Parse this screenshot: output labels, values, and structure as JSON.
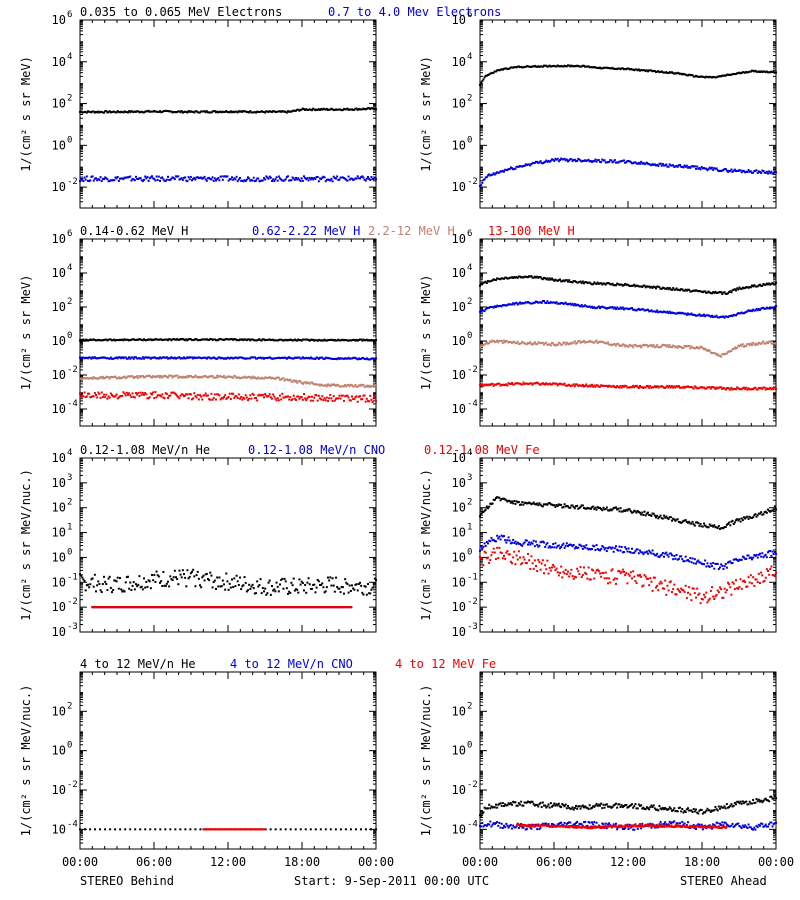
{
  "footer": {
    "left": "STEREO Behind",
    "center": "Start:  9-Sep-2011 00:00 UTC",
    "right": "STEREO Ahead"
  },
  "colors": {
    "black": "#000000",
    "blue": "#0000dd",
    "brown": "#c08070",
    "red": "#ee0000"
  },
  "chart_data": [
    {
      "type": "scatter",
      "panel": "electrons-behind",
      "yscale": "log",
      "title_entries": [
        {
          "text": "0.035 to 0.065 MeV Electrons",
          "color": "#000000"
        },
        {
          "text": "0.7 to 4.0 Mev Electrons",
          "color": "#0000dd"
        }
      ],
      "ylabel": "1/(cm² s sr MeV)",
      "ylim_exp": [
        -3,
        6
      ],
      "ytick_exps": [
        -2,
        0,
        2,
        4,
        6
      ],
      "x_hours": [
        0,
        24
      ],
      "xticks": [
        "00:00",
        "06:00",
        "12:00",
        "18:00",
        "00:00"
      ],
      "series": [
        {
          "color": "#000000",
          "x": [
            0,
            3,
            6,
            9,
            12,
            15,
            17,
            18,
            21,
            24
          ],
          "y_exp": [
            1.6,
            1.6,
            1.62,
            1.6,
            1.62,
            1.6,
            1.6,
            1.72,
            1.72,
            1.75
          ],
          "jitter": 0.04
        },
        {
          "color": "#0000dd",
          "x": [
            0,
            4,
            8,
            12,
            16,
            20,
            24
          ],
          "y_exp": [
            -1.6,
            -1.6,
            -1.6,
            -1.6,
            -1.6,
            -1.6,
            -1.6
          ],
          "jitter": 0.12
        }
      ]
    },
    {
      "type": "scatter",
      "panel": "electrons-ahead",
      "yscale": "log",
      "title_entries": [],
      "ylabel": "1/(cm² s sr MeV)",
      "ylim_exp": [
        -3,
        6
      ],
      "ytick_exps": [
        -2,
        0,
        2,
        4,
        6
      ],
      "x_hours": [
        0,
        24
      ],
      "xticks": [
        "00:00",
        "06:00",
        "12:00",
        "18:00",
        "00:00"
      ],
      "series": [
        {
          "color": "#000000",
          "x": [
            0,
            0.4,
            1.5,
            3,
            6,
            8,
            10,
            12,
            14,
            16,
            17.5,
            19,
            20,
            22,
            24
          ],
          "y_exp": [
            2.9,
            3.3,
            3.6,
            3.75,
            3.8,
            3.8,
            3.7,
            3.65,
            3.55,
            3.45,
            3.3,
            3.25,
            3.35,
            3.55,
            3.5
          ],
          "jitter": 0.03
        },
        {
          "color": "#0000dd",
          "x": [
            0,
            0.5,
            2,
            4,
            6,
            8,
            10,
            12,
            14,
            16,
            18,
            20,
            22,
            24
          ],
          "y_exp": [
            -2.0,
            -1.5,
            -1.2,
            -0.9,
            -0.7,
            -0.7,
            -0.75,
            -0.8,
            -0.9,
            -1.0,
            -1.1,
            -1.2,
            -1.25,
            -1.3
          ],
          "jitter": 0.07
        }
      ]
    },
    {
      "type": "scatter",
      "panel": "protons-behind",
      "yscale": "log",
      "title_entries": [
        {
          "text": "0.14-0.62 MeV H",
          "color": "#000000"
        },
        {
          "text": "0.62-2.22 MeV H",
          "color": "#0000dd"
        },
        {
          "text": "2.2-12 MeV H",
          "color": "#c08070"
        },
        {
          "text": "13-100 MeV H",
          "color": "#ee0000"
        }
      ],
      "ylabel": "1/(cm² s sr MeV)",
      "ylim_exp": [
        -5,
        6
      ],
      "ytick_exps": [
        -4,
        -2,
        0,
        2,
        4,
        6
      ],
      "x_hours": [
        0,
        24
      ],
      "xticks": [
        "00:00",
        "06:00",
        "12:00",
        "18:00",
        "00:00"
      ],
      "series": [
        {
          "color": "#000000",
          "x": [
            0,
            6,
            12,
            18,
            24
          ],
          "y_exp": [
            0.05,
            0.08,
            0.08,
            0.05,
            0.05
          ],
          "jitter": 0.04
        },
        {
          "color": "#0000dd",
          "x": [
            0,
            6,
            12,
            18,
            24
          ],
          "y_exp": [
            -1.0,
            -1.0,
            -1.0,
            -1.0,
            -1.05
          ],
          "jitter": 0.05
        },
        {
          "color": "#c08070",
          "x": [
            0,
            6,
            12,
            16,
            18,
            20,
            24
          ],
          "y_exp": [
            -2.2,
            -2.1,
            -2.1,
            -2.2,
            -2.45,
            -2.6,
            -2.65
          ],
          "jitter": 0.07
        },
        {
          "color": "#ee0000",
          "x": [
            0,
            6,
            12,
            18,
            24
          ],
          "y_exp": [
            -3.2,
            -3.2,
            -3.3,
            -3.3,
            -3.4
          ],
          "jitter": 0.2
        }
      ]
    },
    {
      "type": "scatter",
      "panel": "protons-ahead",
      "yscale": "log",
      "title_entries": [],
      "ylabel": "1/(cm² s sr MeV)",
      "ylim_exp": [
        -5,
        6
      ],
      "ytick_exps": [
        -4,
        -2,
        0,
        2,
        4,
        6
      ],
      "x_hours": [
        0,
        24
      ],
      "xticks": [
        "00:00",
        "06:00",
        "12:00",
        "18:00",
        "00:00"
      ],
      "series": [
        {
          "color": "#000000",
          "x": [
            0,
            1,
            2,
            4,
            6,
            9,
            12,
            15,
            18,
            20,
            21,
            23,
            24
          ],
          "y_exp": [
            3.3,
            3.6,
            3.7,
            3.8,
            3.6,
            3.4,
            3.3,
            3.1,
            2.9,
            2.8,
            3.1,
            3.3,
            3.4
          ],
          "jitter": 0.06
        },
        {
          "color": "#0000dd",
          "x": [
            0,
            1,
            3,
            5,
            7,
            9,
            12,
            15,
            18,
            20,
            22,
            24
          ],
          "y_exp": [
            1.7,
            2.0,
            2.2,
            2.3,
            2.2,
            2.0,
            1.9,
            1.7,
            1.5,
            1.4,
            1.8,
            2.0
          ],
          "jitter": 0.06
        },
        {
          "color": "#c08070",
          "x": [
            0,
            1,
            3,
            6,
            9,
            12,
            15,
            18,
            19.5,
            21,
            23,
            24
          ],
          "y_exp": [
            -0.3,
            0.0,
            -0.1,
            -0.2,
            0.0,
            -0.3,
            -0.3,
            -0.4,
            -0.9,
            -0.3,
            -0.1,
            -0.1
          ],
          "jitter": 0.08
        },
        {
          "color": "#ee0000",
          "x": [
            0,
            4,
            8,
            12,
            16,
            20,
            24
          ],
          "y_exp": [
            -2.6,
            -2.5,
            -2.6,
            -2.7,
            -2.7,
            -2.8,
            -2.8
          ],
          "jitter": 0.07
        }
      ]
    },
    {
      "type": "scatter",
      "panel": "he-cno-fe-behind",
      "yscale": "log",
      "title_entries": [
        {
          "text": "0.12-1.08 MeV/n He",
          "color": "#000000"
        },
        {
          "text": "0.12-1.08 MeV/n CNO",
          "color": "#0000dd"
        },
        {
          "text": "0.12-1.08 MeV Fe",
          "color": "#ee0000"
        }
      ],
      "ylabel": "1/(cm² s sr MeV/nuc.)",
      "ylim_exp": [
        -3,
        4
      ],
      "ytick_exps": [
        -3,
        -2,
        -1,
        0,
        1,
        2,
        3,
        4
      ],
      "x_hours": [
        0,
        24
      ],
      "xticks": [
        "00:00",
        "06:00",
        "12:00",
        "18:00",
        "00:00"
      ],
      "series": [
        {
          "color": "#000000",
          "x": [
            0,
            3,
            6,
            9,
            12,
            15,
            18,
            21,
            24
          ],
          "y_exp": [
            -1.0,
            -1.1,
            -0.9,
            -0.8,
            -1.0,
            -1.2,
            -1.2,
            -1.1,
            -1.2
          ],
          "jitter": 0.35
        },
        {
          "color": "#0000dd",
          "x": [
            1,
            4,
            7,
            11,
            14,
            18,
            22
          ],
          "y_exp": [
            -2.0,
            -2.0,
            -2.0,
            -2.0,
            -2.0,
            -2.0,
            -2.0
          ],
          "jitter": 0.0
        },
        {
          "color": "#ee0000",
          "x": [
            1,
            4,
            7,
            11,
            14,
            18,
            22
          ],
          "y_exp": [
            -2.0,
            -2.0,
            -2.0,
            -2.0,
            -2.0,
            -2.0,
            -2.0
          ],
          "jitter": 0.0
        }
      ]
    },
    {
      "type": "scatter",
      "panel": "he-cno-fe-ahead",
      "yscale": "log",
      "title_entries": [],
      "ylabel": "1/(cm² s sr MeV/nuc.)",
      "ylim_exp": [
        -3,
        4
      ],
      "ytick_exps": [
        -3,
        -2,
        -1,
        0,
        1,
        2,
        3,
        4
      ],
      "x_hours": [
        0,
        24
      ],
      "xticks": [
        "00:00",
        "06:00",
        "12:00",
        "18:00",
        "00:00"
      ],
      "series": [
        {
          "color": "#000000",
          "x": [
            0,
            0.5,
            1.5,
            3,
            6,
            9,
            12,
            15,
            18,
            19.5,
            21,
            23,
            24
          ],
          "y_exp": [
            1.6,
            2.0,
            2.4,
            2.2,
            2.1,
            2.0,
            1.9,
            1.6,
            1.3,
            1.2,
            1.5,
            1.8,
            2.0
          ],
          "jitter": 0.08
        },
        {
          "color": "#0000dd",
          "x": [
            0,
            0.5,
            1.5,
            3,
            6,
            9,
            12,
            15,
            18,
            19.5,
            21,
            23,
            24
          ],
          "y_exp": [
            0.3,
            0.6,
            0.8,
            0.6,
            0.5,
            0.4,
            0.3,
            0.1,
            -0.2,
            -0.4,
            -0.1,
            0.1,
            0.2
          ],
          "jitter": 0.12
        },
        {
          "color": "#ee0000",
          "x": [
            0,
            0.5,
            1.5,
            3,
            6,
            9,
            12,
            15,
            17,
            18,
            20,
            22,
            24
          ],
          "y_exp": [
            -0.2,
            0.0,
            0.2,
            0.0,
            -0.5,
            -0.7,
            -0.8,
            -1.2,
            -1.4,
            -1.6,
            -1.3,
            -0.9,
            -0.6
          ],
          "jitter": 0.3
        }
      ]
    },
    {
      "type": "scatter",
      "panel": "high-energy-behind",
      "yscale": "log",
      "title_entries": [
        {
          "text": "4 to 12 MeV/n He",
          "color": "#000000"
        },
        {
          "text": "4 to 12 MeV/n CNO",
          "color": "#0000dd"
        },
        {
          "text": "4 to 12 MeV Fe",
          "color": "#ee0000"
        }
      ],
      "ylabel": "1/(cm² s sr MeV/nuc.)",
      "ylim_exp": [
        -5,
        4
      ],
      "ytick_exps": [
        -4,
        -2,
        0,
        2
      ],
      "x_hours": [
        0,
        24
      ],
      "xticks": [
        "00:00",
        "06:00",
        "12:00",
        "18:00",
        "00:00"
      ],
      "series": [
        {
          "color": "#000000",
          "x": [
            0,
            6,
            12,
            18,
            24
          ],
          "y_exp": [
            -4.0,
            -4.0,
            -4.0,
            -4.0,
            -4.0
          ],
          "jitter": 0.0
        },
        {
          "color": "#ee0000",
          "x": [
            10,
            15
          ],
          "y_exp": [
            -4.0,
            -4.0
          ],
          "jitter": 0.0
        }
      ]
    },
    {
      "type": "scatter",
      "panel": "high-energy-ahead",
      "yscale": "log",
      "title_entries": [],
      "ylabel": "1/(cm² s sr MeV/nuc.)",
      "ylim_exp": [
        -5,
        4
      ],
      "ytick_exps": [
        -4,
        -2,
        0,
        2
      ],
      "x_hours": [
        0,
        24
      ],
      "xticks": [
        "00:00",
        "06:00",
        "12:00",
        "18:00",
        "00:00"
      ],
      "series": [
        {
          "color": "#000000",
          "x": [
            0,
            0.5,
            2,
            4,
            6,
            8,
            10,
            12,
            14,
            16,
            18,
            19,
            20,
            22,
            24
          ],
          "y_exp": [
            -3.3,
            -2.9,
            -2.7,
            -2.7,
            -2.8,
            -2.9,
            -2.8,
            -2.8,
            -2.9,
            -3.0,
            -3.1,
            -3.0,
            -2.8,
            -2.6,
            -2.4
          ],
          "jitter": 0.12
        },
        {
          "color": "#0000dd",
          "x": [
            0,
            4,
            8,
            12,
            16,
            18,
            20,
            22,
            24
          ],
          "y_exp": [
            -3.7,
            -3.9,
            -3.7,
            -3.9,
            -3.7,
            -3.9,
            -3.7,
            -3.9,
            -3.7
          ],
          "jitter": 0.15
        },
        {
          "color": "#ee0000",
          "x": [
            3,
            9,
            13,
            20
          ],
          "y_exp": [
            -3.8,
            -3.9,
            -3.8,
            -3.9
          ],
          "jitter": 0.05
        }
      ]
    }
  ]
}
